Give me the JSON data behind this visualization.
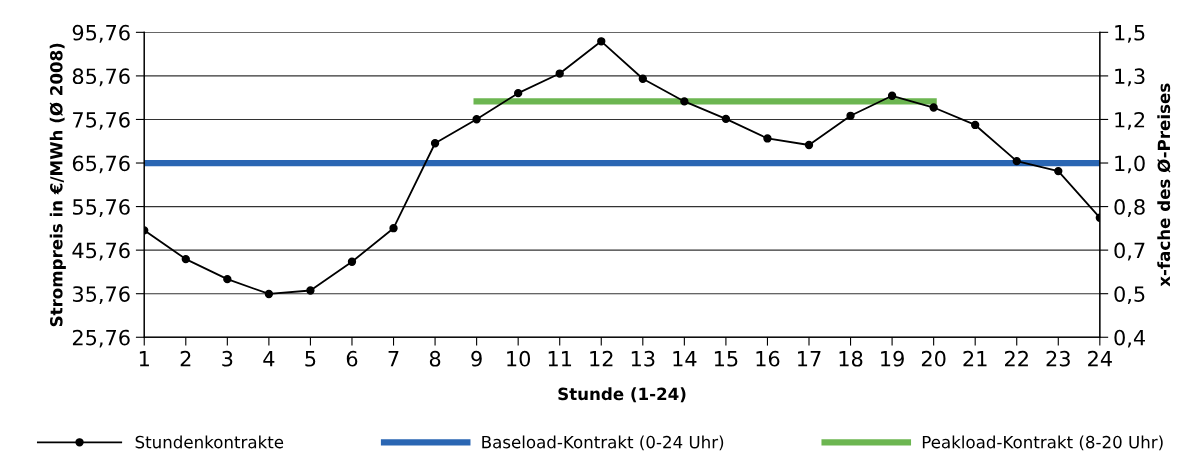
{
  "chart_data": {
    "type": "line",
    "xlabel": "Stunde (1-24)",
    "ylabel": "Strompreis in €/MWh (Ø 2008)",
    "y2label": "x-fache des Ø-Preises",
    "categories": [
      "1",
      "2",
      "3",
      "4",
      "5",
      "6",
      "7",
      "8",
      "9",
      "10",
      "11",
      "12",
      "13",
      "14",
      "15",
      "16",
      "17",
      "18",
      "19",
      "20",
      "21",
      "22",
      "23",
      "24"
    ],
    "series": [
      {
        "name": "Stundenkontrakte",
        "color": "#000000",
        "marker": "circle",
        "values": [
          50.3,
          43.7,
          39.1,
          35.7,
          36.5,
          43.1,
          50.8,
          70.3,
          75.8,
          81.8,
          86.3,
          93.7,
          85.1,
          79.9,
          75.9,
          71.4,
          69.9,
          76.6,
          81.2,
          78.5,
          74.5,
          66.2,
          63.9,
          53.2
        ]
      },
      {
        "name": "Baseload-Kontrakt (0-24 Uhr)",
        "color": "#2a66b3",
        "x": [
          "1",
          "24"
        ],
        "values": [
          65.76,
          65.76
        ]
      },
      {
        "name": "Peakload-Kontrakt (8-20 Uhr)",
        "color": "#6cb651",
        "x": [
          "9",
          "20"
        ],
        "values": [
          79.9,
          79.9
        ]
      }
    ],
    "ylim": [
      25.76,
      95.76
    ],
    "yticks": [
      {
        "value": 25.76,
        "label": "25,76"
      },
      {
        "value": 35.76,
        "label": "35,76"
      },
      {
        "value": 45.76,
        "label": "45,76"
      },
      {
        "value": 55.76,
        "label": "55,76"
      },
      {
        "value": 65.76,
        "label": "65,76"
      },
      {
        "value": 75.76,
        "label": "75,76"
      },
      {
        "value": 85.76,
        "label": "85,76"
      },
      {
        "value": 95.76,
        "label": "95,76"
      }
    ],
    "y2lim": [
      0.3917,
      1.4562
    ],
    "y2ticks": [
      {
        "value": 0.3917,
        "label": "0,4"
      },
      {
        "value": 0.5438,
        "label": "0,5"
      },
      {
        "value": 0.6959,
        "label": "0,7"
      },
      {
        "value": 0.8479,
        "label": "0,8"
      },
      {
        "value": 1.0,
        "label": "1,0"
      },
      {
        "value": 1.1521,
        "label": "1,2"
      },
      {
        "value": 1.3041,
        "label": "1,3"
      },
      {
        "value": 1.4562,
        "label": "1,5"
      }
    ],
    "grid": "y",
    "legend": "bottom",
    "line_style": "solid"
  }
}
